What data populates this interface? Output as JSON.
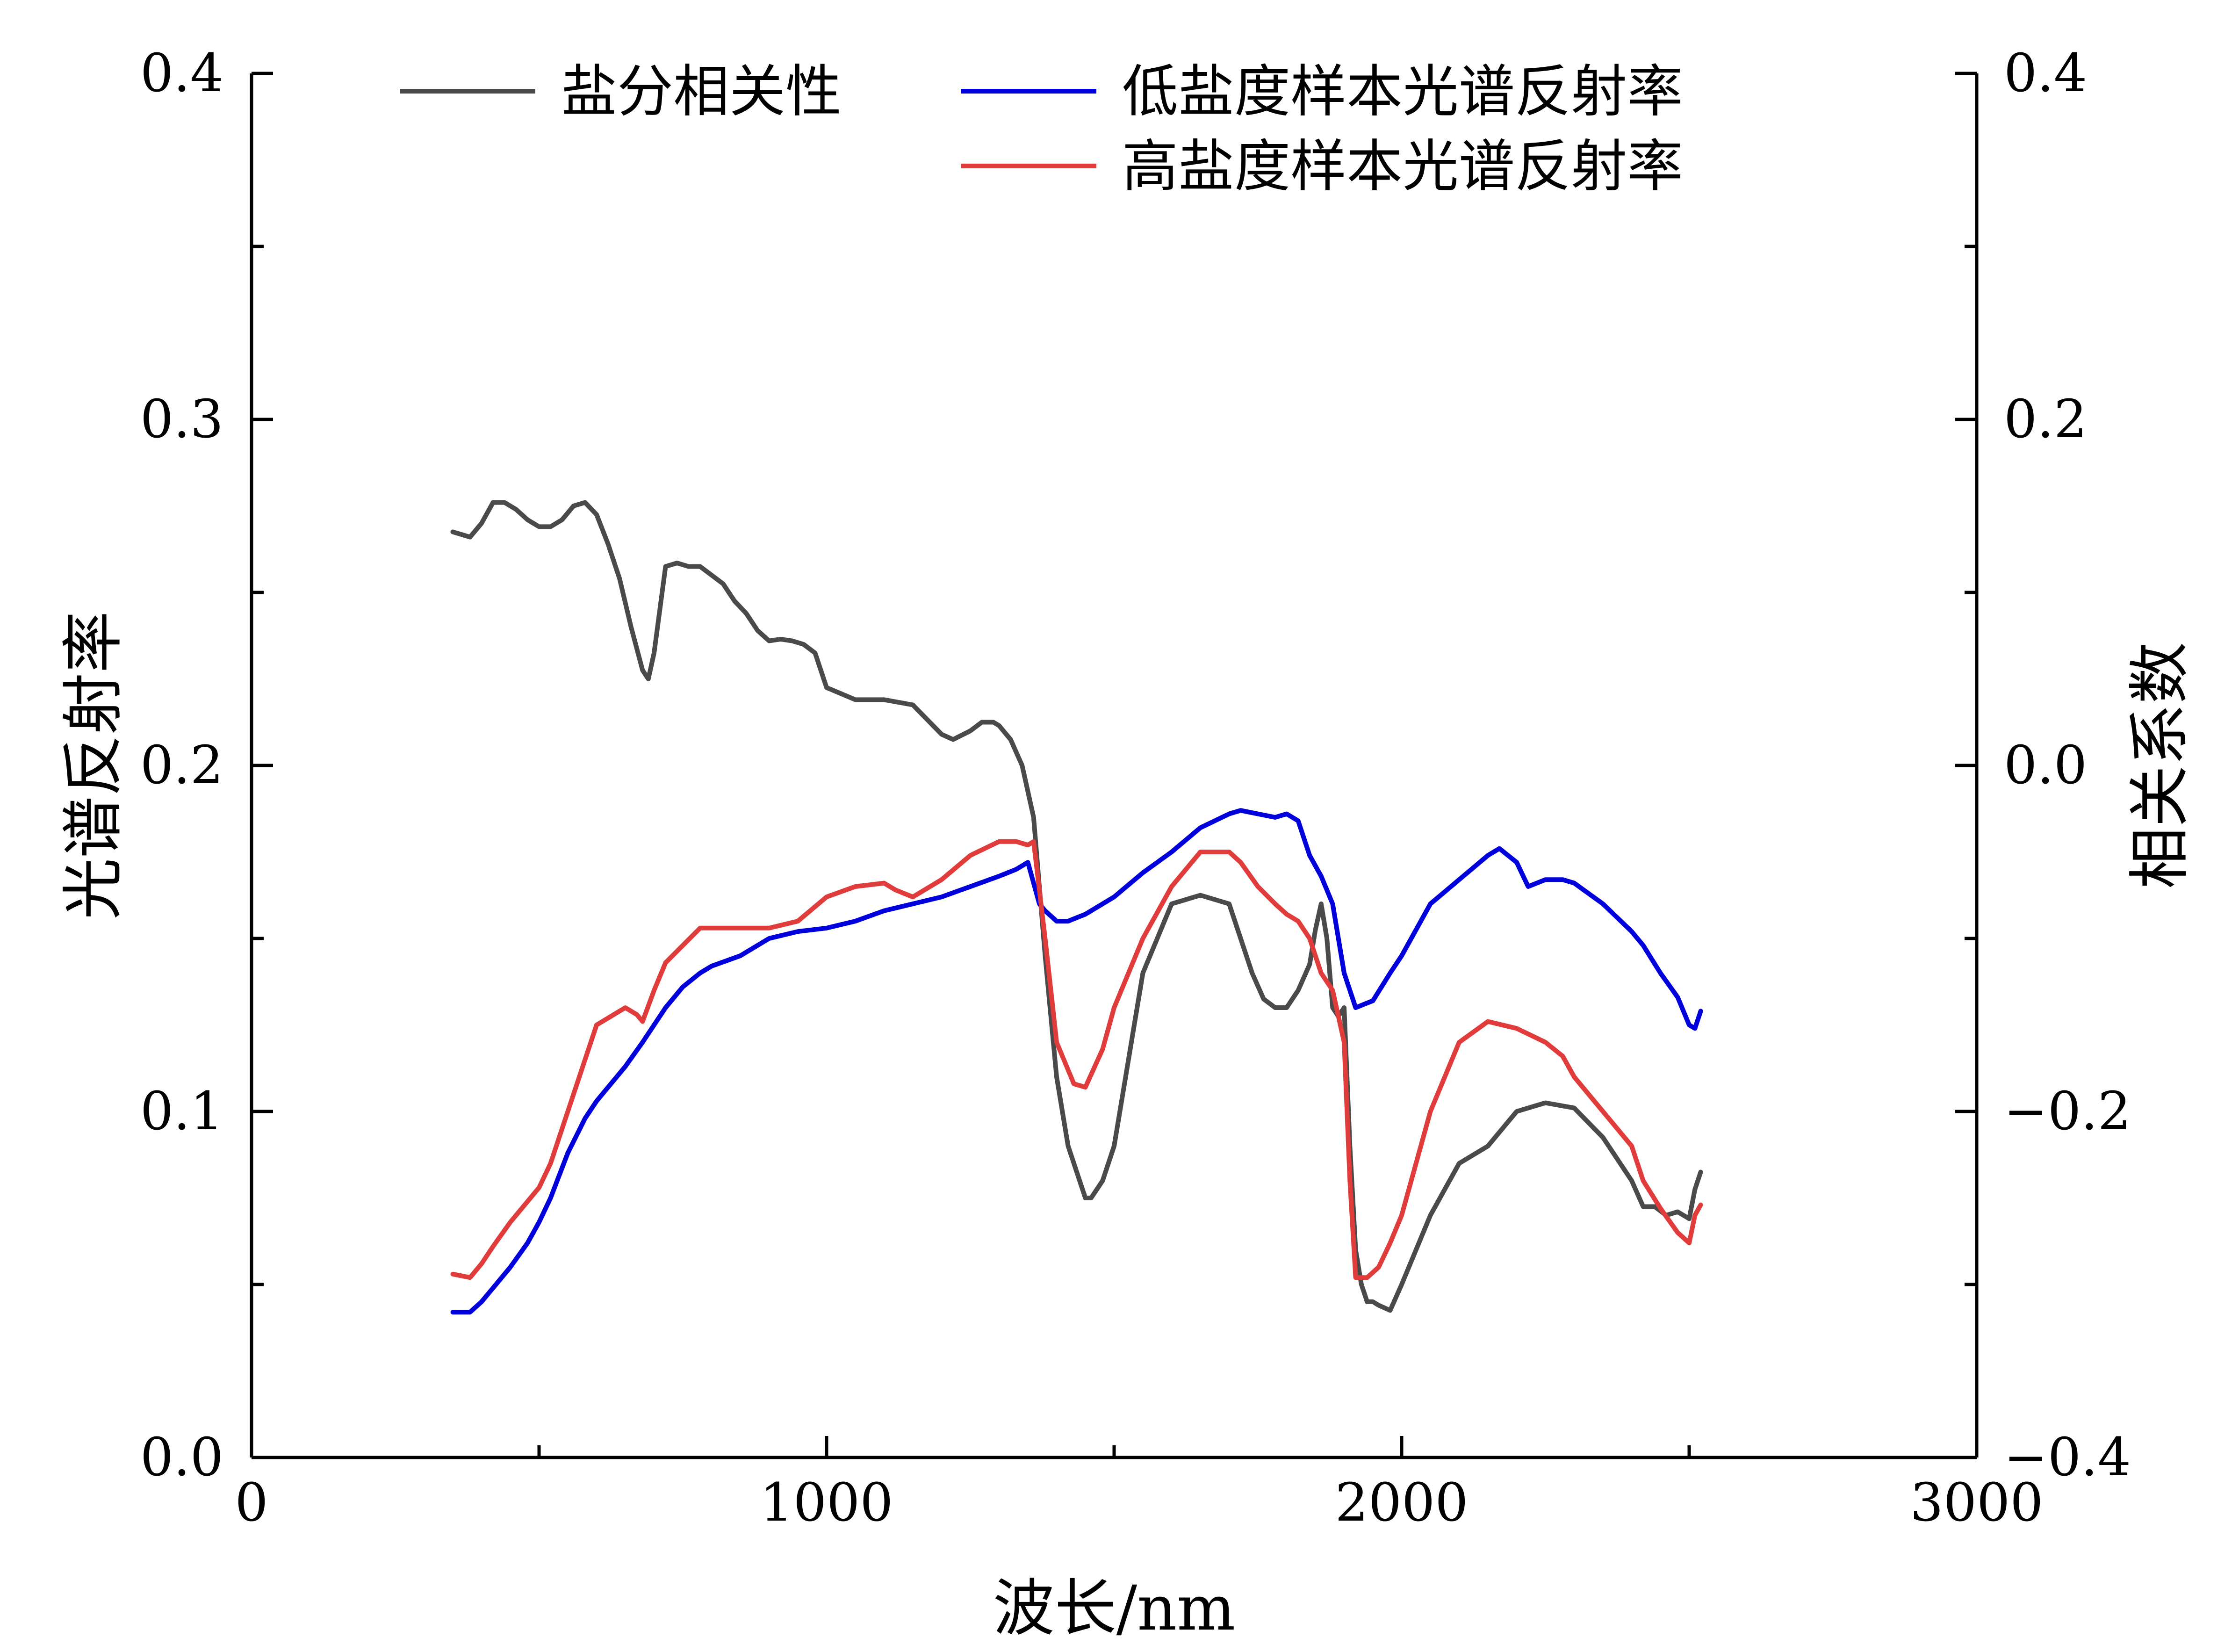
{
  "chart_data": {
    "type": "line",
    "xlabel": "波长/nm",
    "ylabel_left": "光谱反射率",
    "ylabel_right": "相关系数",
    "xlim": [
      0,
      3000
    ],
    "ylim_left": [
      0.0,
      0.4
    ],
    "ylim_right": [
      -0.4,
      0.4
    ],
    "x_ticks": [
      "0",
      "1000",
      "2000",
      "3000"
    ],
    "y_ticks_left": [
      "0.0",
      "0.1",
      "0.2",
      "0.3",
      "0.4"
    ],
    "y_ticks_right": [
      "−0.4",
      "−0.2",
      "0.0",
      "0.2",
      "0.4"
    ],
    "grid": false,
    "legend_position": "top",
    "series": [
      {
        "name": "盐分相关性",
        "color": "#4a4a4a",
        "axis": "right",
        "x": [
          350,
          380,
          400,
          420,
          440,
          460,
          480,
          500,
          520,
          540,
          560,
          580,
          600,
          620,
          640,
          660,
          680,
          690,
          700,
          720,
          740,
          760,
          780,
          800,
          820,
          840,
          860,
          880,
          900,
          920,
          940,
          960,
          980,
          1000,
          1050,
          1100,
          1150,
          1200,
          1220,
          1250,
          1270,
          1290,
          1300,
          1320,
          1340,
          1360,
          1370,
          1380,
          1400,
          1420,
          1440,
          1450,
          1460,
          1480,
          1500,
          1520,
          1550,
          1600,
          1650,
          1700,
          1720,
          1740,
          1760,
          1780,
          1800,
          1820,
          1840,
          1850,
          1860,
          1870,
          1880,
          1890,
          1900,
          1910,
          1920,
          1930,
          1940,
          1950,
          1960,
          1980,
          2000,
          2050,
          2100,
          2150,
          2200,
          2250,
          2300,
          2350,
          2400,
          2420,
          2440,
          2460,
          2480,
          2500,
          2510,
          2520
        ],
        "y": [
          0.135,
          0.132,
          0.14,
          0.152,
          0.152,
          0.148,
          0.142,
          0.138,
          0.138,
          0.142,
          0.15,
          0.152,
          0.145,
          0.128,
          0.108,
          0.08,
          0.055,
          0.05,
          0.065,
          0.115,
          0.117,
          0.115,
          0.115,
          0.11,
          0.105,
          0.095,
          0.088,
          0.078,
          0.072,
          0.073,
          0.072,
          0.07,
          0.065,
          0.045,
          0.038,
          0.038,
          0.035,
          0.018,
          0.015,
          0.02,
          0.025,
          0.025,
          0.023,
          0.015,
          0.0,
          -0.03,
          -0.07,
          -0.11,
          -0.18,
          -0.22,
          -0.24,
          -0.25,
          -0.25,
          -0.24,
          -0.22,
          -0.18,
          -0.12,
          -0.08,
          -0.075,
          -0.08,
          -0.1,
          -0.12,
          -0.135,
          -0.14,
          -0.14,
          -0.13,
          -0.115,
          -0.095,
          -0.08,
          -0.1,
          -0.14,
          -0.145,
          -0.14,
          -0.22,
          -0.28,
          -0.3,
          -0.31,
          -0.31,
          -0.312,
          -0.315,
          -0.3,
          -0.26,
          -0.23,
          -0.22,
          -0.2,
          -0.195,
          -0.198,
          -0.215,
          -0.24,
          -0.255,
          -0.255,
          -0.26,
          -0.258,
          -0.262,
          -0.245,
          -0.235
        ]
      },
      {
        "name": "低盐度样本光谱反射率",
        "color": "#0000dd",
        "axis": "left",
        "x": [
          350,
          380,
          400,
          420,
          450,
          480,
          500,
          520,
          550,
          580,
          600,
          620,
          650,
          680,
          700,
          720,
          750,
          780,
          800,
          850,
          900,
          950,
          1000,
          1050,
          1100,
          1150,
          1200,
          1250,
          1300,
          1330,
          1350,
          1360,
          1370,
          1380,
          1400,
          1420,
          1450,
          1500,
          1550,
          1600,
          1650,
          1700,
          1720,
          1750,
          1780,
          1800,
          1820,
          1840,
          1860,
          1880,
          1900,
          1920,
          1950,
          1980,
          2000,
          2050,
          2100,
          2150,
          2170,
          2200,
          2220,
          2250,
          2280,
          2300,
          2350,
          2400,
          2420,
          2450,
          2480,
          2500,
          2510,
          2520
        ],
        "y": [
          0.042,
          0.042,
          0.045,
          0.049,
          0.055,
          0.062,
          0.068,
          0.075,
          0.088,
          0.098,
          0.103,
          0.107,
          0.113,
          0.12,
          0.125,
          0.13,
          0.136,
          0.14,
          0.142,
          0.145,
          0.15,
          0.152,
          0.153,
          0.155,
          0.158,
          0.16,
          0.162,
          0.165,
          0.168,
          0.17,
          0.172,
          0.166,
          0.16,
          0.158,
          0.155,
          0.155,
          0.157,
          0.162,
          0.169,
          0.175,
          0.182,
          0.186,
          0.187,
          0.186,
          0.185,
          0.186,
          0.184,
          0.174,
          0.168,
          0.16,
          0.14,
          0.13,
          0.132,
          0.14,
          0.145,
          0.16,
          0.167,
          0.174,
          0.176,
          0.172,
          0.165,
          0.167,
          0.167,
          0.166,
          0.16,
          0.152,
          0.148,
          0.14,
          0.133,
          0.125,
          0.124,
          0.129
        ]
      },
      {
        "name": "高盐度样本光谱反射率",
        "color": "#e03c3c",
        "axis": "left",
        "x": [
          350,
          380,
          400,
          420,
          450,
          480,
          500,
          520,
          550,
          580,
          600,
          620,
          650,
          670,
          680,
          700,
          720,
          750,
          780,
          800,
          850,
          900,
          950,
          1000,
          1050,
          1100,
          1120,
          1150,
          1200,
          1250,
          1300,
          1330,
          1350,
          1360,
          1380,
          1400,
          1430,
          1450,
          1480,
          1500,
          1550,
          1600,
          1650,
          1700,
          1720,
          1750,
          1780,
          1800,
          1820,
          1840,
          1860,
          1880,
          1900,
          1910,
          1920,
          1940,
          1960,
          1980,
          2000,
          2050,
          2100,
          2150,
          2200,
          2250,
          2280,
          2300,
          2350,
          2400,
          2420,
          2450,
          2480,
          2500,
          2510,
          2520
        ],
        "y": [
          0.053,
          0.052,
          0.056,
          0.061,
          0.068,
          0.074,
          0.078,
          0.085,
          0.1,
          0.115,
          0.125,
          0.127,
          0.13,
          0.128,
          0.126,
          0.135,
          0.143,
          0.148,
          0.153,
          0.153,
          0.153,
          0.153,
          0.155,
          0.162,
          0.165,
          0.166,
          0.164,
          0.162,
          0.167,
          0.174,
          0.178,
          0.178,
          0.177,
          0.178,
          0.15,
          0.12,
          0.108,
          0.107,
          0.118,
          0.13,
          0.15,
          0.165,
          0.175,
          0.175,
          0.172,
          0.165,
          0.16,
          0.157,
          0.155,
          0.15,
          0.14,
          0.135,
          0.12,
          0.08,
          0.052,
          0.052,
          0.055,
          0.062,
          0.07,
          0.1,
          0.12,
          0.126,
          0.124,
          0.12,
          0.116,
          0.11,
          0.1,
          0.09,
          0.08,
          0.072,
          0.065,
          0.062,
          0.07,
          0.073
        ]
      }
    ]
  }
}
